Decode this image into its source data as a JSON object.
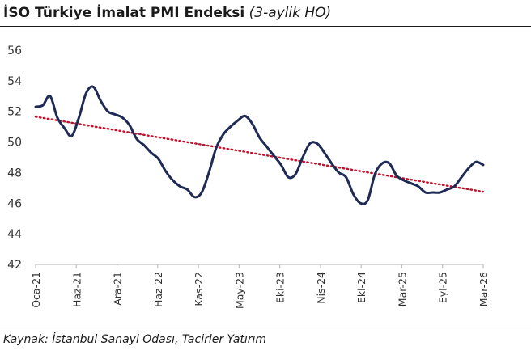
{
  "title": "İSO Türkiye İmalat PMI Endeksi",
  "subtitle": "(3-aylik HO)",
  "source": "Kaynak: İstanbul Sanayi Odası, Tacirler Yatırım",
  "colors": {
    "series": "#1f2a55",
    "trend": "#c0122b",
    "axis": "#bfbfbf"
  },
  "chart_data": {
    "type": "line",
    "ylim": [
      42,
      56
    ],
    "yticks": [
      42,
      44,
      46,
      48,
      50,
      52,
      54,
      56
    ],
    "xtick_labels": [
      "Oca-21",
      "Haz-21",
      "Ara-21",
      "Haz-22",
      "Kas-22",
      "May-23",
      "Eki-23",
      "Nis-24",
      "Eki-24",
      "Mar-25",
      "Eyl-25",
      "Mar-26"
    ],
    "grid": false,
    "series": [
      {
        "style": "solid",
        "values": [
          52.3,
          52.4,
          53.0,
          51.6,
          50.9,
          50.4,
          51.6,
          53.2,
          53.6,
          52.7,
          52.0,
          51.8,
          51.6,
          51.1,
          50.2,
          49.8,
          49.3,
          48.9,
          48.1,
          47.5,
          47.1,
          46.9,
          46.4,
          46.7,
          48.0,
          49.6,
          50.5,
          51.0,
          51.4,
          51.7,
          51.2,
          50.3,
          49.7,
          49.1,
          48.5,
          47.7,
          47.9,
          49.0,
          49.9,
          49.9,
          49.3,
          48.6,
          48.0,
          47.7,
          46.6,
          46.0,
          46.2,
          47.9,
          48.6,
          48.6,
          47.8,
          47.5,
          47.3,
          47.1,
          46.7,
          46.7,
          46.7,
          46.9,
          47.1,
          47.7,
          48.3,
          48.7,
          48.5
        ]
      },
      {
        "style": "dotted",
        "values": [
          51.65,
          46.75
        ]
      }
    ]
  }
}
